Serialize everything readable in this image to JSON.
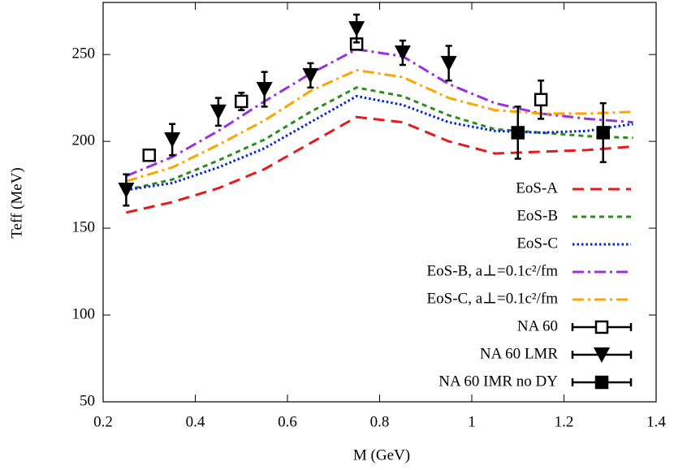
{
  "chart_data": {
    "type": "line",
    "xlabel": "M (GeV)",
    "ylabel": "Teff (MeV)",
    "xlim": [
      0.2,
      1.4
    ],
    "xticks": [
      0.2,
      0.4,
      0.6,
      0.8,
      1,
      1.2,
      1.4
    ],
    "ylim": [
      50,
      280
    ],
    "yticks": [
      50,
      100,
      150,
      200,
      250
    ],
    "legend": "lower right",
    "series": [
      {
        "name": "EoS-A",
        "color": "#e41a1c",
        "style": "dashed",
        "x": [
          0.25,
          0.35,
          0.45,
          0.55,
          0.65,
          0.75,
          0.85,
          0.95,
          1.05,
          1.15,
          1.25,
          1.35
        ],
        "values": [
          159,
          165,
          173,
          184,
          199,
          214,
          211,
          200,
          193,
          194,
          195,
          197
        ]
      },
      {
        "name": "EoS-B",
        "color": "#2e8b22",
        "style": "short-dashed",
        "x": [
          0.25,
          0.35,
          0.45,
          0.55,
          0.65,
          0.75,
          0.85,
          0.95,
          1.05,
          1.15,
          1.25,
          1.35
        ],
        "values": [
          172,
          178,
          189,
          201,
          217,
          231,
          226,
          215,
          207,
          205,
          203,
          202
        ]
      },
      {
        "name": "EoS-C",
        "color": "#0022dd",
        "style": "dotted",
        "x": [
          0.25,
          0.35,
          0.45,
          0.55,
          0.65,
          0.75,
          0.85,
          0.95,
          1.05,
          1.15,
          1.25,
          1.35
        ],
        "values": [
          172,
          176,
          185,
          196,
          211,
          226,
          221,
          211,
          206,
          205,
          206,
          210
        ]
      },
      {
        "name": "EoS-B, a⊥=0.1c²/fm",
        "color": "#9b30e0",
        "style": "dash-dot",
        "x": [
          0.25,
          0.35,
          0.45,
          0.55,
          0.65,
          0.75,
          0.85,
          0.95,
          1.05,
          1.15,
          1.25,
          1.35
        ],
        "values": [
          180,
          191,
          206,
          223,
          239,
          253,
          249,
          233,
          222,
          216,
          213,
          211
        ]
      },
      {
        "name": "EoS-C, a⊥=0.1c²/fm",
        "color": "#ffa500",
        "style": "dash-dot",
        "x": [
          0.25,
          0.35,
          0.45,
          0.55,
          0.65,
          0.75,
          0.85,
          0.95,
          1.05,
          1.15,
          1.25,
          1.35
        ],
        "values": [
          177,
          185,
          198,
          212,
          229,
          241,
          237,
          225,
          218,
          216,
          216,
          217
        ]
      },
      {
        "name": "NA 60",
        "color": "#000000",
        "marker": "open-square",
        "x": [
          0.3,
          0.5,
          0.75,
          1.15
        ],
        "values": [
          192,
          223,
          256,
          224
        ],
        "errors": [
          2,
          5,
          3,
          11
        ]
      },
      {
        "name": "NA 60 LMR",
        "color": "#000000",
        "marker": "triangle-down",
        "x": [
          0.25,
          0.35,
          0.45,
          0.55,
          0.65,
          0.75,
          0.85,
          0.95
        ],
        "values": [
          172,
          201,
          217,
          230,
          238,
          265,
          251,
          245
        ],
        "errors": [
          9,
          9,
          8,
          10,
          7,
          8,
          7,
          10
        ]
      },
      {
        "name": "NA 60 IMR no DY",
        "color": "#000000",
        "marker": "filled-square",
        "x": [
          1.1,
          1.285
        ],
        "values": [
          205,
          205
        ],
        "errors": [
          15,
          17
        ]
      }
    ]
  }
}
